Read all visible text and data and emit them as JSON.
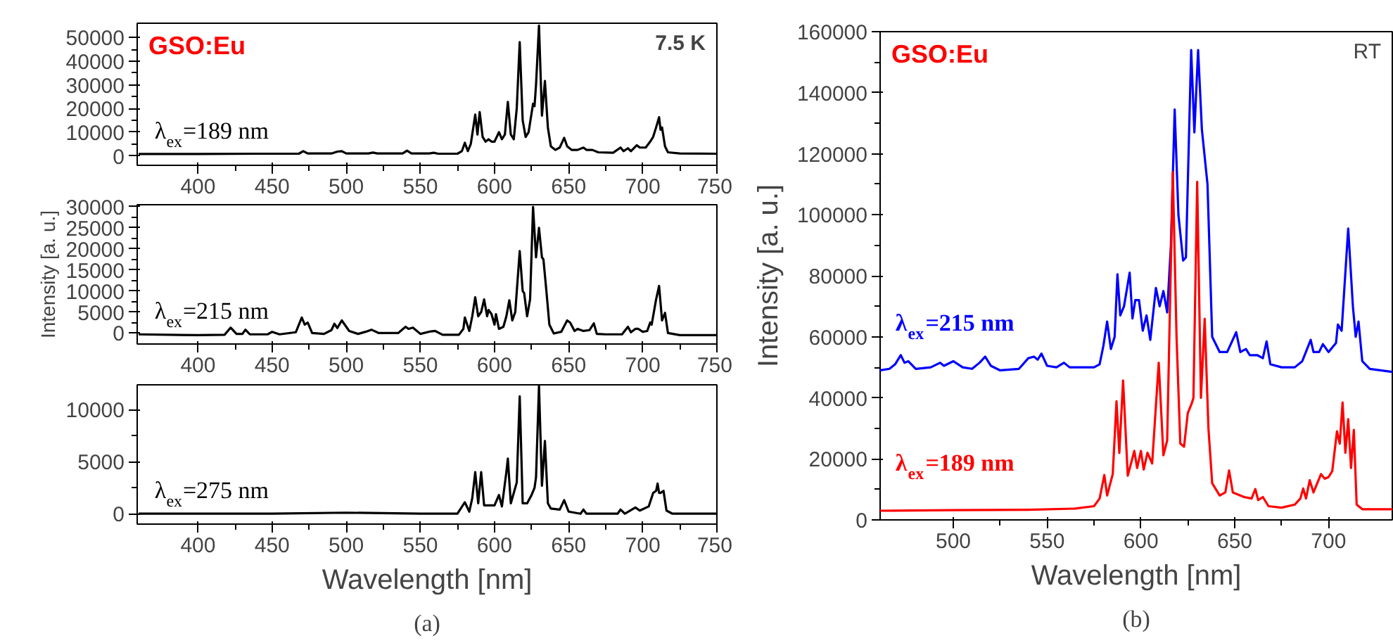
{
  "chart_data": [
    {
      "type": "line",
      "title": "GSO:Eu",
      "subtitle": "7.5 K",
      "xlim": [
        359,
        750
      ],
      "xticks": [
        400,
        450,
        500,
        550,
        600,
        650,
        700,
        750
      ],
      "ylim": [
        -4000,
        56000
      ],
      "yticks": [
        0,
        10000,
        20000,
        30000,
        40000,
        50000
      ],
      "series": [
        {
          "name": "λ$_{ex}$=189 nm",
          "color": "#000000",
          "x": [
            360,
            400,
            440,
            468,
            471,
            474,
            490,
            494,
            497,
            500,
            515,
            518,
            521,
            538,
            541,
            544,
            556,
            559,
            562,
            575,
            578,
            580,
            582,
            584,
            587,
            588.5,
            590,
            592,
            594,
            596,
            598,
            600,
            603,
            605,
            607,
            609,
            611,
            613,
            615,
            617,
            619,
            621,
            623,
            626,
            627,
            628,
            630,
            632,
            634,
            636,
            638,
            641,
            644,
            647,
            649,
            652,
            656,
            660,
            662,
            666,
            670,
            680,
            685,
            687,
            690,
            692,
            696,
            698,
            702,
            705,
            707,
            709,
            711,
            712,
            713,
            715,
            717,
            725,
            750
          ],
          "values": [
            800,
            800,
            900,
            900,
            2000,
            1000,
            1000,
            1800,
            2000,
            1000,
            1000,
            1400,
            1000,
            1000,
            2200,
            1000,
            1000,
            1300,
            900,
            900,
            2000,
            5500,
            2000,
            5000,
            17400,
            9000,
            18500,
            8000,
            6000,
            7000,
            6000,
            6000,
            10000,
            7000,
            9000,
            22800,
            9000,
            7000,
            20000,
            48000,
            15000,
            8000,
            10000,
            22000,
            21000,
            30000,
            55000,
            17000,
            31600,
            12000,
            4000,
            2500,
            3500,
            7600,
            4000,
            2500,
            2500,
            3500,
            2500,
            2500,
            1500,
            1300,
            3500,
            2000,
            3200,
            2000,
            4500,
            3500,
            3500,
            6000,
            8000,
            12000,
            16300,
            11000,
            12000,
            4000,
            1500,
            1000,
            900
          ]
        }
      ]
    },
    {
      "type": "line",
      "ylabel": "Intensity [a. u.]",
      "xlim": [
        359,
        750
      ],
      "xticks": [
        400,
        450,
        500,
        550,
        600,
        650,
        700,
        750
      ],
      "ylim": [
        -2600,
        30500
      ],
      "yticks": [
        0,
        5000,
        10000,
        15000,
        20000,
        25000,
        30000
      ],
      "series": [
        {
          "name": "λ$_{ex}$=215 nm",
          "color": "#000000",
          "x": [
            360,
            400,
            418,
            422,
            426,
            430,
            432,
            435,
            447,
            450,
            455,
            466,
            470,
            472,
            474,
            477,
            485,
            490,
            492,
            494,
            497,
            502,
            508,
            513,
            517,
            522,
            535,
            540,
            542,
            545,
            550,
            557,
            560,
            565,
            576,
            579,
            580,
            583,
            585,
            587,
            589,
            591,
            593,
            595,
            596,
            598,
            600,
            601,
            603,
            606,
            608,
            610,
            612,
            614,
            617,
            619,
            620,
            622,
            624,
            626,
            628,
            630,
            632,
            633,
            635,
            637,
            640,
            645,
            649,
            651,
            654,
            656,
            660,
            664,
            667,
            669,
            675,
            686,
            690,
            692,
            695,
            697,
            700,
            703,
            705,
            706,
            709,
            711,
            713,
            715,
            717,
            725,
            750
          ],
          "values": [
            -300,
            -500,
            -400,
            1300,
            -200,
            -200,
            800,
            -300,
            -300,
            300,
            -300,
            200,
            3700,
            2000,
            2500,
            0,
            -200,
            700,
            2200,
            1200,
            3000,
            500,
            -200,
            300,
            800,
            0,
            0,
            1500,
            1000,
            1300,
            -200,
            400,
            500,
            -400,
            -400,
            1000,
            3700,
            500,
            4000,
            8500,
            4000,
            5000,
            8000,
            4000,
            5500,
            4500,
            2000,
            4500,
            1000,
            1500,
            4000,
            7800,
            3000,
            5000,
            19500,
            10000,
            9500,
            4000,
            8000,
            30000,
            18000,
            25000,
            18000,
            17500,
            10000,
            2000,
            -100,
            300,
            3000,
            2500,
            500,
            1000,
            500,
            700,
            2300,
            -200,
            -300,
            -300,
            1500,
            200,
            1000,
            1000,
            300,
            500,
            2500,
            2000,
            8000,
            11200,
            3000,
            4800,
            0,
            -500,
            -500
          ]
        }
      ]
    },
    {
      "type": "line",
      "xlabel": "Wavelength [nm]",
      "xlim": [
        359,
        750
      ],
      "xticks": [
        400,
        450,
        500,
        550,
        600,
        650,
        700,
        750
      ],
      "ylim": [
        -1000,
        12400
      ],
      "yticks": [
        0,
        5000,
        10000
      ],
      "annotations": [
        "(a)"
      ],
      "series": [
        {
          "name": "λ$_{ex}$=275 nm",
          "color": "#000000",
          "x": [
            360,
            400,
            450,
            500,
            550,
            575,
            580,
            583,
            585,
            587,
            589,
            591,
            593,
            600,
            603,
            605,
            608,
            609,
            611,
            615,
            617,
            619,
            622,
            625,
            627,
            628,
            630,
            632,
            634,
            636,
            638,
            644,
            647,
            650,
            658,
            660,
            662,
            683,
            685,
            688,
            695,
            698,
            704,
            707,
            709,
            710,
            711,
            712,
            714,
            716,
            720,
            750
          ],
          "values": [
            0,
            0,
            0,
            100,
            0,
            0,
            1100,
            200,
            1500,
            4000,
            1000,
            4000,
            800,
            800,
            1800,
            700,
            4000,
            5300,
            1000,
            3000,
            11300,
            1000,
            1000,
            1800,
            2500,
            3500,
            12300,
            2700,
            7000,
            1000,
            500,
            400,
            1300,
            200,
            0,
            400,
            0,
            0,
            400,
            0,
            600,
            300,
            700,
            2000,
            2200,
            2900,
            2000,
            2000,
            2200,
            300,
            0,
            0
          ]
        }
      ]
    },
    {
      "type": "line",
      "title": "GSO:Eu",
      "subtitle": "RT",
      "xlabel": "Wavelength [nm]",
      "ylabel": "Intensity [a. u.]",
      "xlim": [
        461,
        734
      ],
      "xticks": [
        500,
        550,
        600,
        650,
        700
      ],
      "ylim": [
        0,
        160000
      ],
      "yticks": [
        0,
        20000,
        40000,
        60000,
        80000,
        100000,
        120000,
        140000,
        160000
      ],
      "annotations": [
        "(b)"
      ],
      "series": [
        {
          "name": "λ$_{ex}$=215 nm",
          "color": "#0000ff",
          "x": [
            461,
            466,
            469,
            472,
            474,
            476,
            480,
            488,
            493,
            495,
            500,
            505,
            510,
            514,
            517,
            520,
            525,
            535,
            540,
            543,
            545,
            547,
            550,
            555,
            559,
            562,
            575,
            578,
            580,
            582,
            584,
            586,
            587.5,
            589,
            591,
            594,
            595.5,
            597,
            599,
            601,
            603,
            605,
            608,
            610,
            612,
            614,
            616,
            618,
            620,
            622.5,
            624,
            626.8,
            628.5,
            630.5,
            632.5,
            635.5,
            638,
            642,
            646,
            650.8,
            653,
            656,
            658,
            662,
            665,
            667,
            669,
            675,
            682,
            686,
            690.5,
            692,
            695,
            697,
            700,
            704,
            705,
            707,
            710.5,
            713,
            714.5,
            716,
            718,
            722,
            734
          ],
          "values": [
            49000,
            49500,
            51000,
            54000,
            51500,
            52000,
            49500,
            50000,
            51500,
            50500,
            52000,
            50000,
            49500,
            51500,
            53500,
            50500,
            49000,
            49500,
            53000,
            53500,
            52500,
            54500,
            50500,
            50000,
            51500,
            50000,
            50000,
            51000,
            57000,
            65000,
            56000,
            60000,
            80500,
            67000,
            70000,
            81000,
            66000,
            72000,
            72000,
            62000,
            67000,
            59000,
            76000,
            70000,
            75000,
            68000,
            90000,
            134500,
            100000,
            85000,
            86000,
            154000,
            127000,
            154000,
            128000,
            110000,
            60000,
            55000,
            55000,
            61500,
            55000,
            56000,
            54000,
            54000,
            53000,
            58500,
            51000,
            50000,
            50000,
            52000,
            59000,
            55000,
            55000,
            57600,
            55000,
            58000,
            64000,
            62000,
            95500,
            70000,
            60000,
            65000,
            52000,
            49500,
            48500
          ]
        },
        {
          "name": "λ$_{ex}$=189 nm",
          "color": "#ff0000",
          "x": [
            461,
            500,
            540,
            565,
            575,
            578,
            580.5,
            582,
            585,
            587,
            588.5,
            590.5,
            593,
            596.5,
            598,
            600,
            601.5,
            603.5,
            606,
            609.5,
            612,
            614,
            617,
            619,
            621,
            623,
            625,
            627,
            628,
            630,
            632,
            634,
            636,
            638,
            642,
            645,
            647,
            649,
            655,
            659,
            661,
            662.5,
            665,
            668,
            675,
            682,
            685,
            686.5,
            688,
            690,
            692,
            696,
            698,
            700,
            702,
            704.5,
            706,
            707.5,
            709,
            710.5,
            712,
            713.5,
            715,
            718,
            734
          ],
          "values": [
            3000,
            3200,
            3300,
            3700,
            4500,
            7000,
            14700,
            8000,
            15000,
            38900,
            21900,
            45700,
            14500,
            22600,
            17000,
            22600,
            16500,
            22000,
            18500,
            51500,
            21200,
            26000,
            114000,
            60000,
            25000,
            24000,
            35000,
            38000,
            40000,
            110800,
            40000,
            65900,
            30000,
            12000,
            8000,
            9000,
            16200,
            9000,
            7500,
            7000,
            10100,
            6500,
            7500,
            4500,
            4000,
            5000,
            7000,
            10300,
            7000,
            13000,
            9000,
            15000,
            13500,
            14000,
            16000,
            29000,
            25000,
            38500,
            22000,
            33000,
            17000,
            29500,
            5000,
            3500,
            3500
          ]
        }
      ]
    }
  ]
}
